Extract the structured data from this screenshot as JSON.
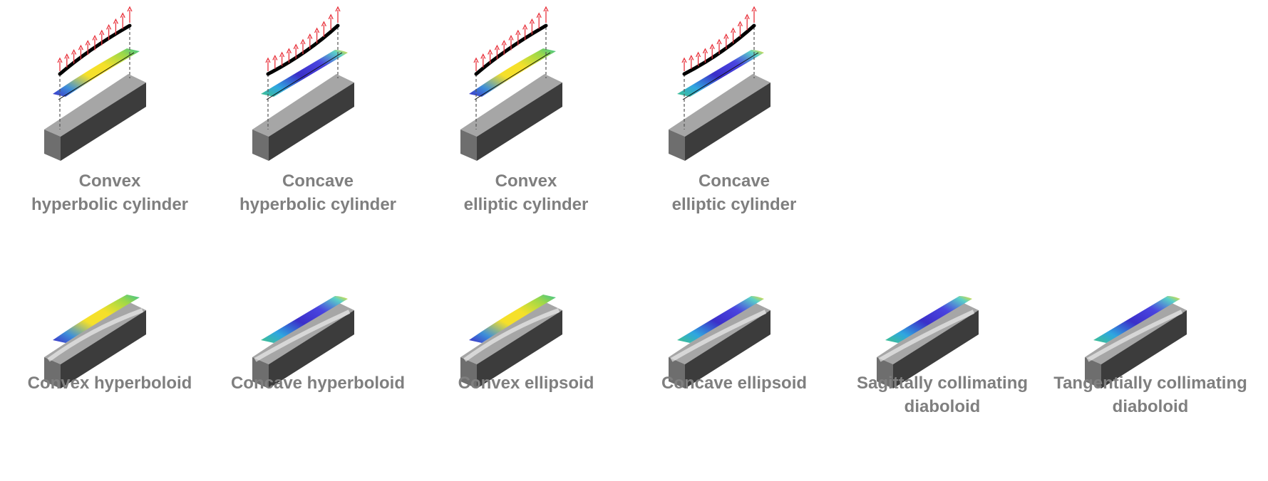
{
  "colors": {
    "caption_text": "#7f7f7f",
    "block_top": "#a6a6a6",
    "block_front": "#6e6e6e",
    "block_side": "#3c3c3c",
    "arrow_red": "#e8313b",
    "profile_line": "#000000",
    "map_yellow": "#f5e02a",
    "map_green": "#3fc38c",
    "map_blue": "#3b2fc9"
  },
  "row1": [
    {
      "line1": "Convex",
      "line2": "hyperbolic cylinder",
      "curvature": "convex",
      "map": "yellow-center"
    },
    {
      "line1": "Concave",
      "line2": "hyperbolic cylinder",
      "curvature": "concave",
      "map": "blue-center"
    },
    {
      "line1": "Convex",
      "line2": "elliptic cylinder",
      "curvature": "convex",
      "map": "yellow-center"
    },
    {
      "line1": "Concave",
      "line2": "elliptic cylinder",
      "curvature": "concave",
      "map": "blue-center"
    }
  ],
  "row2": [
    {
      "line1": "Convex hyperboloid",
      "line2": "",
      "curvature": "convex",
      "map": "yellow-center"
    },
    {
      "line1": "Concave hyperboloid",
      "line2": "",
      "curvature": "concave",
      "map": "blue-center"
    },
    {
      "line1": "Convex ellipsoid",
      "line2": "",
      "curvature": "convex",
      "map": "yellow-center"
    },
    {
      "line1": "Concave ellipsoid",
      "line2": "",
      "curvature": "concave",
      "map": "blue-center"
    },
    {
      "line1": "Sagittally collimating",
      "line2": "diaboloid",
      "curvature": "concave",
      "map": "blue-center"
    },
    {
      "line1": "Tangentially collimating",
      "line2": "diaboloid",
      "curvature": "concave",
      "map": "blue-center"
    }
  ]
}
